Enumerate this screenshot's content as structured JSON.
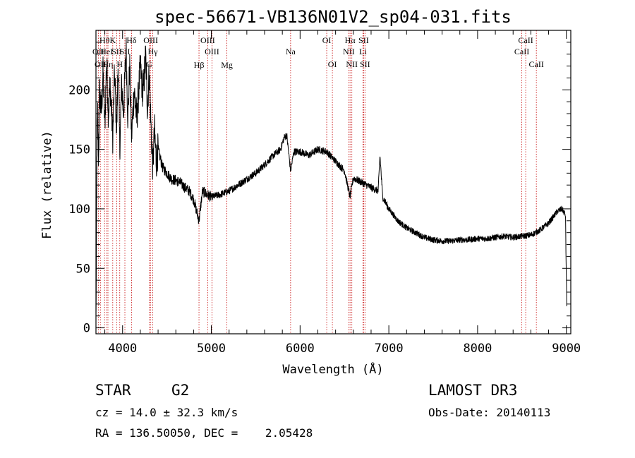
{
  "chart_data": {
    "type": "line",
    "title": "spec-56671-VB136N01V2_sp04-031.fits",
    "xlabel": "Wavelength (Å)",
    "ylabel": "Flux (relative)",
    "xlim": [
      3700,
      9050
    ],
    "ylim": [
      -5,
      250
    ],
    "xticks": [
      4000,
      5000,
      6000,
      7000,
      8000,
      9000
    ],
    "yticks": [
      0,
      50,
      100,
      150,
      200
    ],
    "grid": false,
    "series": [
      {
        "name": "spectrum",
        "anchors": [
          [
            3700,
            5
          ],
          [
            3706,
            80
          ],
          [
            3712,
            150
          ],
          [
            3720,
            180
          ],
          [
            3730,
            140
          ],
          [
            3740,
            200
          ],
          [
            3760,
            180
          ],
          [
            3780,
            215
          ],
          [
            3800,
            170
          ],
          [
            3820,
            225
          ],
          [
            3840,
            180
          ],
          [
            3860,
            205
          ],
          [
            3890,
            160
          ],
          [
            3910,
            215
          ],
          [
            3934,
            165
          ],
          [
            3950,
            225
          ],
          [
            3968,
            150
          ],
          [
            3990,
            205
          ],
          [
            4010,
            180
          ],
          [
            4040,
            235
          ],
          [
            4060,
            175
          ],
          [
            4080,
            220
          ],
          [
            4101,
            160
          ],
          [
            4130,
            200
          ],
          [
            4160,
            175
          ],
          [
            4200,
            220
          ],
          [
            4230,
            195
          ],
          [
            4260,
            230
          ],
          [
            4280,
            185
          ],
          [
            4300,
            215
          ],
          [
            4320,
            170
          ],
          [
            4340,
            135
          ],
          [
            4360,
            165
          ],
          [
            4380,
            140
          ],
          [
            4400,
            150
          ],
          [
            4450,
            135
          ],
          [
            4500,
            130
          ],
          [
            4550,
            125
          ],
          [
            4600,
            124
          ],
          [
            4650,
            122
          ],
          [
            4700,
            118
          ],
          [
            4750,
            115
          ],
          [
            4800,
            108
          ],
          [
            4861,
            90
          ],
          [
            4900,
            115
          ],
          [
            4950,
            112
          ],
          [
            5000,
            110
          ],
          [
            5100,
            112
          ],
          [
            5200,
            115
          ],
          [
            5300,
            120
          ],
          [
            5400,
            125
          ],
          [
            5500,
            130
          ],
          [
            5600,
            137
          ],
          [
            5700,
            145
          ],
          [
            5780,
            150
          ],
          [
            5820,
            160
          ],
          [
            5850,
            162
          ],
          [
            5893,
            132
          ],
          [
            5930,
            148
          ],
          [
            6000,
            148
          ],
          [
            6100,
            145
          ],
          [
            6200,
            150
          ],
          [
            6300,
            148
          ],
          [
            6400,
            140
          ],
          [
            6500,
            132
          ],
          [
            6563,
            110
          ],
          [
            6600,
            126
          ],
          [
            6700,
            122
          ],
          [
            6800,
            118
          ],
          [
            6880,
            115
          ],
          [
            6900,
            145
          ],
          [
            6930,
            110
          ],
          [
            7000,
            100
          ],
          [
            7100,
            90
          ],
          [
            7200,
            84
          ],
          [
            7300,
            80
          ],
          [
            7400,
            76
          ],
          [
            7500,
            74
          ],
          [
            7600,
            73
          ],
          [
            7700,
            73
          ],
          [
            7800,
            74
          ],
          [
            7900,
            74
          ],
          [
            8000,
            75
          ],
          [
            8100,
            75
          ],
          [
            8200,
            76
          ],
          [
            8300,
            77
          ],
          [
            8400,
            76
          ],
          [
            8500,
            77
          ],
          [
            8600,
            78
          ],
          [
            8700,
            82
          ],
          [
            8800,
            88
          ],
          [
            8900,
            98
          ],
          [
            8950,
            100
          ],
          [
            8990,
            95
          ],
          [
            9000,
            40
          ],
          [
            9005,
            15
          ]
        ]
      }
    ],
    "lines": [
      {
        "w": 3727,
        "label": "OII",
        "row": 2
      },
      {
        "w": 3750,
        "label": "OII",
        "row": 3
      },
      {
        "w": 3797,
        "label": "Hθ",
        "row": 1
      },
      {
        "w": 3820,
        "label": "HeI",
        "row": 2
      },
      {
        "w": 3835,
        "label": "Hη",
        "row": 3
      },
      {
        "w": 3889,
        "label": "K",
        "row": 1
      },
      {
        "w": 3934,
        "label": "SII",
        "row": 2
      },
      {
        "w": 3968,
        "label": "H",
        "row": 3
      },
      {
        "w": 4026,
        "label": "SII",
        "row": 2
      },
      {
        "w": 4101,
        "label": "Hδ",
        "row": 1
      },
      {
        "w": 4300,
        "label": "G",
        "row": 3
      },
      {
        "w": 4317,
        "label": "OIII",
        "row": 1
      },
      {
        "w": 4340,
        "label": "Hγ",
        "row": 2
      },
      {
        "w": 4861,
        "label": "Hβ",
        "row": 4
      },
      {
        "w": 4959,
        "label": "OIII",
        "row": 1
      },
      {
        "w": 5007,
        "label": "OIII",
        "row": 2
      },
      {
        "w": 5175,
        "label": "Mg",
        "row": 4
      },
      {
        "w": 5893,
        "label": "Na",
        "row": 2
      },
      {
        "w": 6300,
        "label": "OI",
        "row": 1
      },
      {
        "w": 6364,
        "label": "OI",
        "row": 3
      },
      {
        "w": 6548,
        "label": "NII",
        "row": 2
      },
      {
        "w": 6563,
        "label": "Hα",
        "row": 1
      },
      {
        "w": 6583,
        "label": "NII",
        "row": 3
      },
      {
        "w": 6708,
        "label": "Li",
        "row": 2
      },
      {
        "w": 6716,
        "label": "SII",
        "row": 1
      },
      {
        "w": 6731,
        "label": "SII",
        "row": 3
      },
      {
        "w": 8498,
        "label": "CaII",
        "row": 2
      },
      {
        "w": 8542,
        "label": "CaII",
        "row": 1
      },
      {
        "w": 8662,
        "label": "CaII",
        "row": 3
      }
    ]
  },
  "info": {
    "class": "STAR",
    "subclass": "G2",
    "survey": "LAMOST DR3",
    "cz": "cz = 14.0 ± 32.3 km/s",
    "obs_date": "Obs-Date: 20140113",
    "radec": "RA = 136.50050, DEC =    2.05428"
  }
}
